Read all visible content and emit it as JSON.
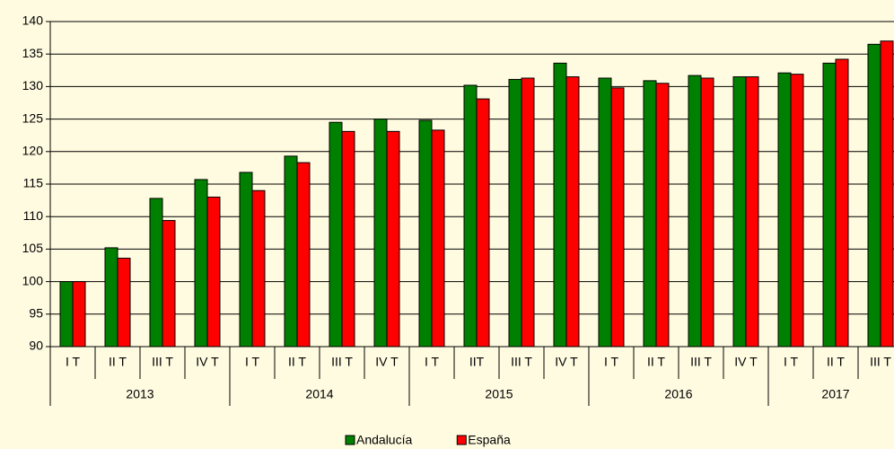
{
  "chart_data": {
    "type": "bar",
    "groups": [
      {
        "label": "2013",
        "categories": [
          "I T",
          "II T",
          "III T",
          "IV T"
        ]
      },
      {
        "label": "2014",
        "categories": [
          "I T",
          "II T",
          "III T",
          "IV T"
        ]
      },
      {
        "label": "2015",
        "categories": [
          "I T",
          "IIT",
          "III T",
          "IV T"
        ]
      },
      {
        "label": "2016",
        "categories": [
          "I T",
          "II T",
          "III T",
          "IV T"
        ]
      },
      {
        "label": "2017",
        "categories": [
          "I T",
          "II T",
          "III T"
        ]
      }
    ],
    "series": [
      {
        "name": "Andalucía",
        "color": "#008000",
        "values": [
          100,
          105.2,
          112.8,
          115.7,
          116.8,
          119.3,
          124.5,
          125.0,
          124.8,
          130.2,
          131.1,
          133.6,
          131.3,
          130.9,
          131.7,
          131.5,
          132.1,
          133.6,
          136.5
        ]
      },
      {
        "name": "España",
        "color": "#ff0000",
        "values": [
          100,
          103.6,
          109.4,
          113.0,
          114.0,
          118.3,
          123.1,
          123.1,
          123.3,
          128.1,
          131.3,
          131.5,
          129.8,
          130.5,
          131.3,
          131.5,
          131.9,
          134.2,
          137.0
        ]
      }
    ],
    "ylim": [
      90,
      140
    ],
    "yticks": [
      90,
      95,
      100,
      105,
      110,
      115,
      120,
      125,
      130,
      135,
      140
    ],
    "grid": true,
    "legend": "bottom"
  }
}
